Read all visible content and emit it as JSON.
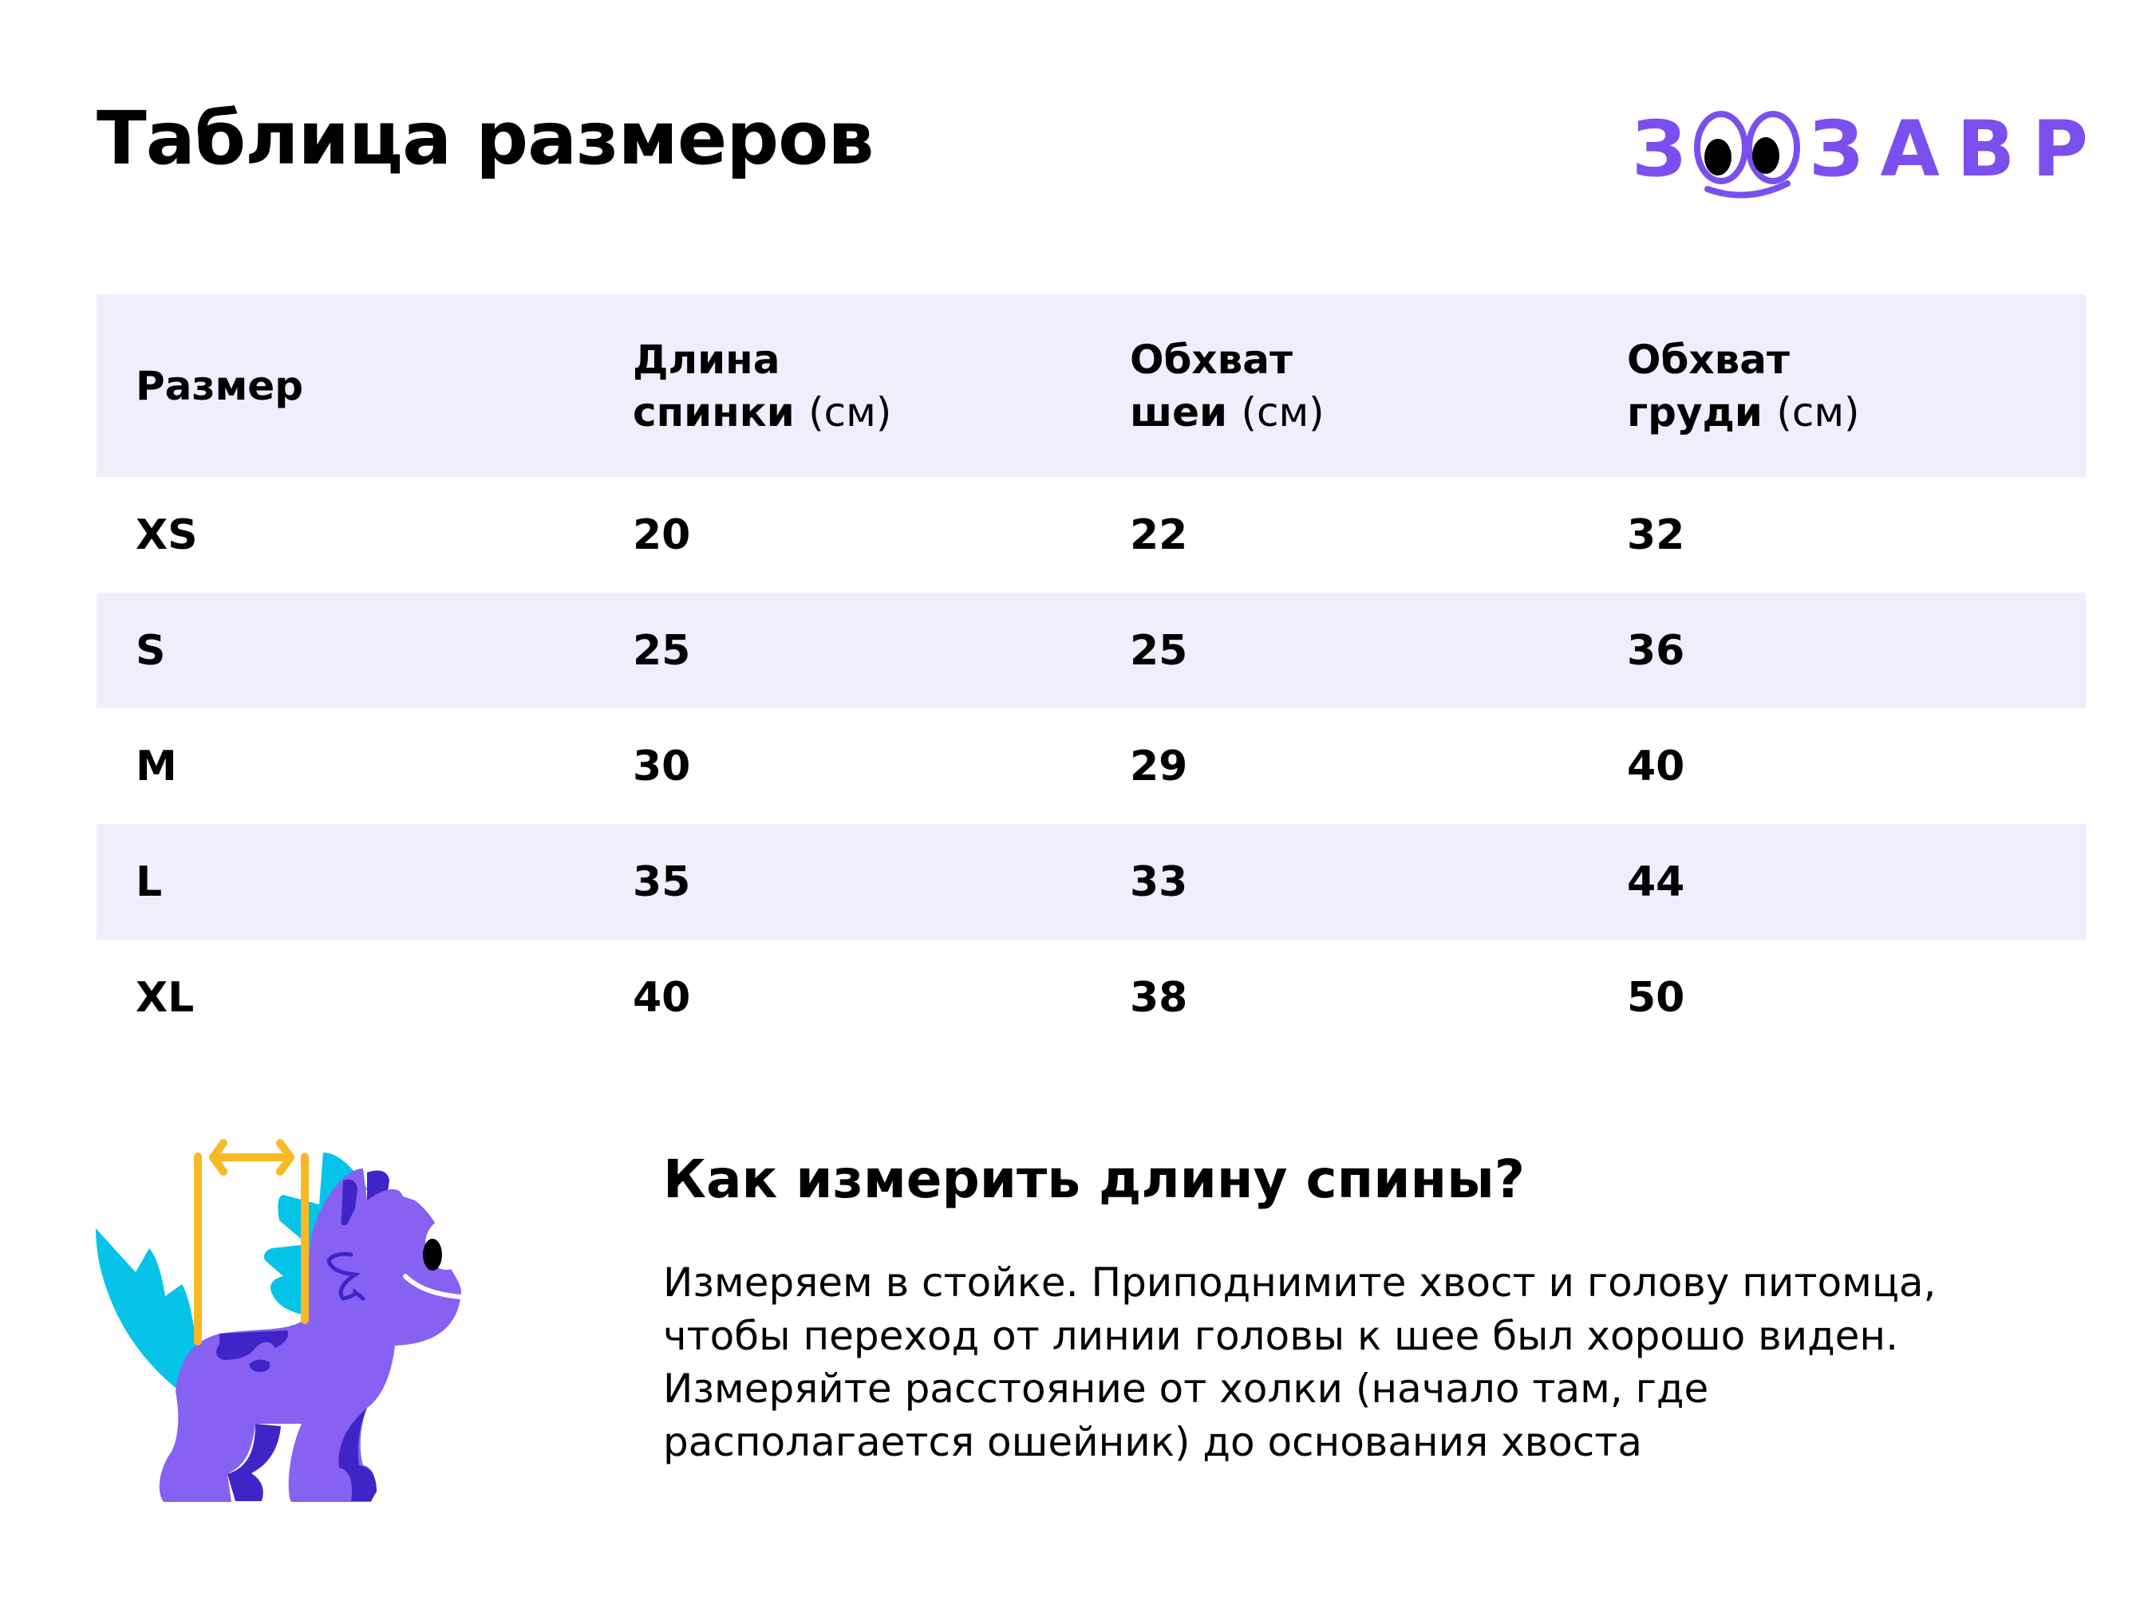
{
  "title": "Таблица размеров",
  "logo": {
    "text": "ЗООЗАВР",
    "color": "#7b4fee"
  },
  "table": {
    "headers": [
      {
        "line1": "Размер",
        "line2": "",
        "unit": ""
      },
      {
        "line1": "Длина",
        "line2": "спинки",
        "unit": "(см)"
      },
      {
        "line1": "Обхват",
        "line2": "шеи",
        "unit": "(см)"
      },
      {
        "line1": "Обхват",
        "line2": "груди",
        "unit": "(см)"
      }
    ],
    "rows": [
      [
        "XS",
        "20",
        "22",
        "32"
      ],
      [
        "S",
        "25",
        "25",
        "36"
      ],
      [
        "M",
        "30",
        "29",
        "40"
      ],
      [
        "L",
        "35",
        "33",
        "44"
      ],
      [
        "XL",
        "40",
        "38",
        "50"
      ]
    ],
    "stripe_color": "#f0edfc"
  },
  "how_to": {
    "title": "Как измерить длину спины?",
    "text": "Измеряем в стойке. Приподнимите хвост и голову питомца, чтобы переход от линии головы к шее был хорошо виден. Измеряйте расстояние от холки (начало там, где располагается ошейник) до основания хвоста"
  },
  "illustration": {
    "icon": "dino-back-length-icon",
    "colors": {
      "body": "#8661f2",
      "dark": "#3f25c8",
      "spikes": "#05c3e9",
      "measure": "#f7b924"
    }
  }
}
